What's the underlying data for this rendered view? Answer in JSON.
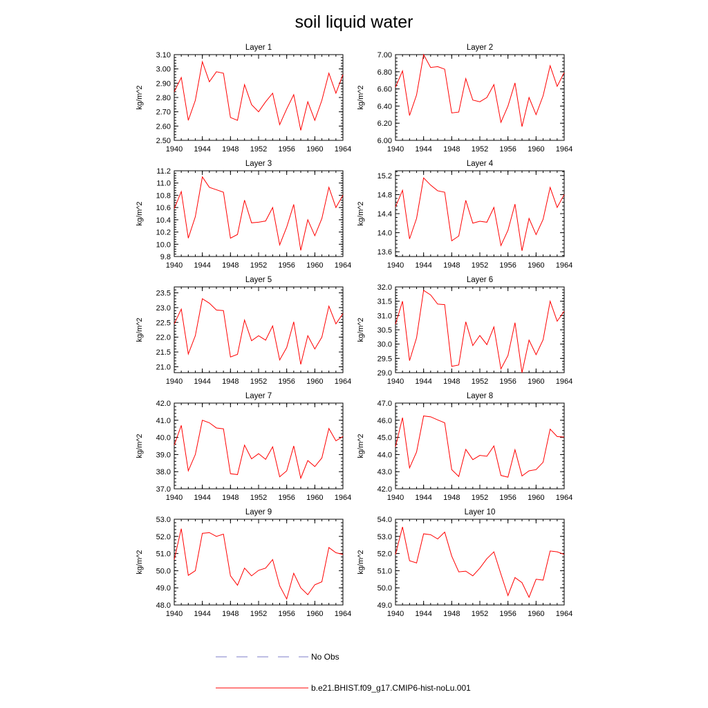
{
  "title": "soil liquid water",
  "legend": {
    "items": [
      {
        "label": "No Obs",
        "style": "dashed",
        "color": "#7b7bc8"
      },
      {
        "label": "b.e21.BHIST.f09_g17.CMIP6-hist-noLu.001",
        "style": "solid",
        "color": "#ff0000"
      }
    ]
  },
  "chart_data": [
    {
      "type": "line",
      "title": "Layer 1",
      "xlabel": "",
      "ylabel": "kg/m^2",
      "xlim": [
        1940,
        1964
      ],
      "ylim": [
        2.5,
        3.1
      ],
      "xticks": [
        "1940",
        "1944",
        "1948",
        "1952",
        "1956",
        "1960",
        "1964"
      ],
      "yticks": [
        "2.50",
        "2.60",
        "2.70",
        "2.80",
        "2.90",
        "3.00",
        "3.10"
      ],
      "x": [
        1940,
        1941,
        1942,
        1943,
        1944,
        1945,
        1946,
        1947,
        1948,
        1949,
        1950,
        1951,
        1952,
        1953,
        1954,
        1955,
        1956,
        1957,
        1958,
        1959,
        1960,
        1961,
        1962,
        1963,
        1964
      ],
      "series": [
        {
          "name": "b.e21.BHIST.f09_g17.CMIP6-hist-noLu.001",
          "values": [
            2.84,
            2.94,
            2.64,
            2.78,
            3.05,
            2.91,
            2.98,
            2.97,
            2.66,
            2.64,
            2.89,
            2.75,
            2.7,
            2.77,
            2.83,
            2.61,
            2.72,
            2.82,
            2.57,
            2.77,
            2.64,
            2.78,
            2.97,
            2.83,
            2.96
          ]
        }
      ]
    },
    {
      "type": "line",
      "title": "Layer 2",
      "xlabel": "",
      "ylabel": "kg/m^2",
      "xlim": [
        1940,
        1964
      ],
      "ylim": [
        6.0,
        7.0
      ],
      "xticks": [
        "1940",
        "1944",
        "1948",
        "1952",
        "1956",
        "1960",
        "1964"
      ],
      "yticks": [
        "6.00",
        "6.20",
        "6.40",
        "6.60",
        "6.80",
        "7.00"
      ],
      "x": [
        1940,
        1941,
        1942,
        1943,
        1944,
        1945,
        1946,
        1947,
        1948,
        1949,
        1950,
        1951,
        1952,
        1953,
        1954,
        1955,
        1956,
        1957,
        1958,
        1959,
        1960,
        1961,
        1962,
        1963,
        1964
      ],
      "series": [
        {
          "name": "b.e21.BHIST.f09_g17.CMIP6-hist-noLu.001",
          "values": [
            6.62,
            6.81,
            6.29,
            6.53,
            7.0,
            6.85,
            6.86,
            6.83,
            6.32,
            6.33,
            6.72,
            6.47,
            6.45,
            6.5,
            6.65,
            6.21,
            6.4,
            6.67,
            6.16,
            6.5,
            6.3,
            6.52,
            6.87,
            6.63,
            6.79
          ]
        }
      ]
    },
    {
      "type": "line",
      "title": "Layer 3",
      "xlabel": "",
      "ylabel": "kg/m^2",
      "xlim": [
        1940,
        1964
      ],
      "ylim": [
        9.8,
        11.2
      ],
      "xticks": [
        "1940",
        "1944",
        "1948",
        "1952",
        "1956",
        "1960",
        "1964"
      ],
      "yticks": [
        "9.8",
        "10.0",
        "10.2",
        "10.4",
        "10.6",
        "10.8",
        "11.0",
        "11.2"
      ],
      "x": [
        1940,
        1941,
        1942,
        1943,
        1944,
        1945,
        1946,
        1947,
        1948,
        1949,
        1950,
        1951,
        1952,
        1953,
        1954,
        1955,
        1956,
        1957,
        1958,
        1959,
        1960,
        1961,
        1962,
        1963,
        1964
      ],
      "series": [
        {
          "name": "b.e21.BHIST.f09_g17.CMIP6-hist-noLu.001",
          "values": [
            10.58,
            10.86,
            10.1,
            10.45,
            11.1,
            10.93,
            10.89,
            10.85,
            10.1,
            10.16,
            10.72,
            10.35,
            10.36,
            10.38,
            10.6,
            9.99,
            10.28,
            10.65,
            9.9,
            10.4,
            10.14,
            10.42,
            10.93,
            10.6,
            10.8
          ]
        }
      ]
    },
    {
      "type": "line",
      "title": "Layer 4",
      "xlabel": "",
      "ylabel": "kg/m^2",
      "xlim": [
        1940,
        1964
      ],
      "ylim": [
        13.5,
        15.3
      ],
      "xticks": [
        "1940",
        "1944",
        "1948",
        "1952",
        "1956",
        "1960",
        "1964"
      ],
      "yticks": [
        "13.6",
        "14.0",
        "14.4",
        "14.8",
        "15.2"
      ],
      "x": [
        1940,
        1941,
        1942,
        1943,
        1944,
        1945,
        1946,
        1947,
        1948,
        1949,
        1950,
        1951,
        1952,
        1953,
        1954,
        1955,
        1956,
        1957,
        1958,
        1959,
        1960,
        1961,
        1962,
        1963,
        1964
      ],
      "series": [
        {
          "name": "b.e21.BHIST.f09_g17.CMIP6-hist-noLu.001",
          "values": [
            14.54,
            14.89,
            13.87,
            14.3,
            15.15,
            15.0,
            14.88,
            14.85,
            13.83,
            13.93,
            14.68,
            14.2,
            14.24,
            14.22,
            14.53,
            13.73,
            14.05,
            14.6,
            13.62,
            14.3,
            13.96,
            14.28,
            14.95,
            14.53,
            14.8
          ]
        }
      ]
    },
    {
      "type": "line",
      "title": "Layer 5",
      "xlabel": "",
      "ylabel": "kg/m^2",
      "xlim": [
        1940,
        1964
      ],
      "ylim": [
        20.8,
        23.7
      ],
      "xticks": [
        "1940",
        "1944",
        "1948",
        "1952",
        "1956",
        "1960",
        "1964"
      ],
      "yticks": [
        "21.0",
        "21.5",
        "22.0",
        "22.5",
        "23.0",
        "23.5"
      ],
      "x": [
        1940,
        1941,
        1942,
        1943,
        1944,
        1945,
        1946,
        1947,
        1948,
        1949,
        1950,
        1951,
        1952,
        1953,
        1954,
        1955,
        1956,
        1957,
        1958,
        1959,
        1960,
        1961,
        1962,
        1963,
        1964
      ],
      "series": [
        {
          "name": "b.e21.BHIST.f09_g17.CMIP6-hist-noLu.001",
          "values": [
            22.45,
            22.95,
            21.43,
            22.05,
            23.3,
            23.15,
            22.92,
            22.9,
            21.33,
            21.42,
            22.58,
            21.88,
            22.05,
            21.9,
            22.38,
            21.23,
            21.65,
            22.52,
            21.08,
            22.05,
            21.6,
            22.0,
            23.05,
            22.45,
            22.8
          ]
        }
      ]
    },
    {
      "type": "line",
      "title": "Layer 6",
      "xlabel": "",
      "ylabel": "kg/m^2",
      "xlim": [
        1940,
        1964
      ],
      "ylim": [
        29.0,
        32.0
      ],
      "xticks": [
        "1940",
        "1944",
        "1948",
        "1952",
        "1956",
        "1960",
        "1964"
      ],
      "yticks": [
        "29.0",
        "29.5",
        "30.0",
        "30.5",
        "31.0",
        "31.5",
        "32.0"
      ],
      "x": [
        1940,
        1941,
        1942,
        1943,
        1944,
        1945,
        1946,
        1947,
        1948,
        1949,
        1950,
        1951,
        1952,
        1953,
        1954,
        1955,
        1956,
        1957,
        1958,
        1959,
        1960,
        1961,
        1962,
        1963,
        1964
      ],
      "series": [
        {
          "name": "b.e21.BHIST.f09_g17.CMIP6-hist-noLu.001",
          "values": [
            30.7,
            31.5,
            29.42,
            30.22,
            31.88,
            31.72,
            31.4,
            31.38,
            29.22,
            29.27,
            30.78,
            29.95,
            30.3,
            29.98,
            30.6,
            29.13,
            29.6,
            30.75,
            29.0,
            30.14,
            29.63,
            30.15,
            31.5,
            30.8,
            31.15
          ]
        }
      ]
    },
    {
      "type": "line",
      "title": "Layer 7",
      "xlabel": "",
      "ylabel": "kg/m^2",
      "xlim": [
        1940,
        1964
      ],
      "ylim": [
        37.0,
        42.0
      ],
      "xticks": [
        "1940",
        "1944",
        "1948",
        "1952",
        "1956",
        "1960",
        "1964"
      ],
      "yticks": [
        "37.0",
        "38.0",
        "39.0",
        "40.0",
        "41.0",
        "42.0"
      ],
      "x": [
        1940,
        1941,
        1942,
        1943,
        1944,
        1945,
        1946,
        1947,
        1948,
        1949,
        1950,
        1951,
        1952,
        1953,
        1954,
        1955,
        1956,
        1957,
        1958,
        1959,
        1960,
        1961,
        1962,
        1963,
        1964
      ],
      "series": [
        {
          "name": "b.e21.BHIST.f09_g17.CMIP6-hist-noLu.001",
          "values": [
            39.55,
            40.7,
            38.05,
            39.0,
            41.0,
            40.85,
            40.55,
            40.5,
            37.88,
            37.83,
            39.55,
            38.75,
            39.05,
            38.72,
            39.45,
            37.7,
            38.05,
            39.5,
            37.62,
            38.65,
            38.3,
            38.8,
            40.52,
            39.8,
            40.05
          ]
        }
      ]
    },
    {
      "type": "line",
      "title": "Layer 8",
      "xlabel": "",
      "ylabel": "kg/m^2",
      "xlim": [
        1940,
        1964
      ],
      "ylim": [
        42.0,
        47.0
      ],
      "xticks": [
        "1940",
        "1944",
        "1948",
        "1952",
        "1956",
        "1960",
        "1964"
      ],
      "yticks": [
        "42.0",
        "43.0",
        "44.0",
        "45.0",
        "46.0",
        "47.0"
      ],
      "x": [
        1940,
        1941,
        1942,
        1943,
        1944,
        1945,
        1946,
        1947,
        1948,
        1949,
        1950,
        1951,
        1952,
        1953,
        1954,
        1955,
        1956,
        1957,
        1958,
        1959,
        1960,
        1961,
        1962,
        1963,
        1964
      ],
      "series": [
        {
          "name": "b.e21.BHIST.f09_g17.CMIP6-hist-noLu.001",
          "values": [
            44.45,
            46.15,
            43.22,
            44.15,
            46.25,
            46.2,
            46.02,
            45.85,
            43.12,
            42.72,
            44.3,
            43.7,
            43.95,
            43.9,
            44.5,
            42.78,
            42.68,
            44.28,
            42.75,
            43.05,
            43.12,
            43.55,
            45.48,
            45.05,
            45.02
          ]
        }
      ]
    },
    {
      "type": "line",
      "title": "Layer 9",
      "xlabel": "",
      "ylabel": "kg/m^2",
      "xlim": [
        1940,
        1964
      ],
      "ylim": [
        48.0,
        53.0
      ],
      "xticks": [
        "1940",
        "1944",
        "1948",
        "1952",
        "1956",
        "1960",
        "1964"
      ],
      "yticks": [
        "48.0",
        "49.0",
        "50.0",
        "51.0",
        "52.0",
        "53.0"
      ],
      "x": [
        1940,
        1941,
        1942,
        1943,
        1944,
        1945,
        1946,
        1947,
        1948,
        1949,
        1950,
        1951,
        1952,
        1953,
        1954,
        1955,
        1956,
        1957,
        1958,
        1959,
        1960,
        1961,
        1962,
        1963,
        1964
      ],
      "series": [
        {
          "name": "b.e21.BHIST.f09_g17.CMIP6-hist-noLu.001",
          "values": [
            50.65,
            52.45,
            49.73,
            50.0,
            52.18,
            52.22,
            52.0,
            52.13,
            49.7,
            49.15,
            50.15,
            49.7,
            50.02,
            50.15,
            50.65,
            49.12,
            48.35,
            49.85,
            49.0,
            48.6,
            49.18,
            49.35,
            51.35,
            51.05,
            50.95
          ]
        }
      ]
    },
    {
      "type": "line",
      "title": "Layer 10",
      "xlabel": "",
      "ylabel": "kg/m^2",
      "xlim": [
        1940,
        1964
      ],
      "ylim": [
        49.0,
        54.0
      ],
      "xticks": [
        "1940",
        "1944",
        "1948",
        "1952",
        "1956",
        "1960",
        "1964"
      ],
      "yticks": [
        "49.0",
        "50.0",
        "51.0",
        "52.0",
        "53.0",
        "54.0"
      ],
      "x": [
        1940,
        1941,
        1942,
        1943,
        1944,
        1945,
        1946,
        1947,
        1948,
        1949,
        1950,
        1951,
        1952,
        1953,
        1954,
        1955,
        1956,
        1957,
        1958,
        1959,
        1960,
        1961,
        1962,
        1963,
        1964
      ],
      "series": [
        {
          "name": "b.e21.BHIST.f09_g17.CMIP6-hist-noLu.001",
          "values": [
            51.95,
            53.55,
            51.58,
            51.45,
            53.15,
            53.1,
            52.85,
            53.25,
            51.85,
            50.93,
            50.97,
            50.7,
            51.15,
            51.7,
            52.1,
            50.8,
            49.55,
            50.6,
            50.3,
            49.45,
            50.5,
            50.45,
            52.15,
            52.1,
            51.95
          ]
        }
      ]
    }
  ]
}
